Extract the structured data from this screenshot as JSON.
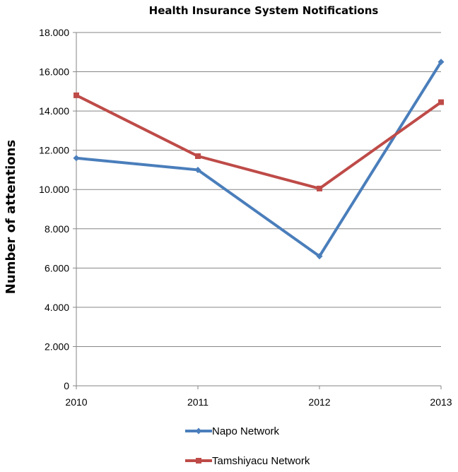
{
  "chart_data": {
    "type": "line",
    "title": "Health Insurance System Notifications",
    "ylabel": "Number of attentions",
    "xlabel": "",
    "x": [
      "2010",
      "2011",
      "2012",
      "2013"
    ],
    "ylim": [
      0,
      18000
    ],
    "ytick_values": [
      0,
      2000,
      4000,
      6000,
      8000,
      10000,
      12000,
      14000,
      16000,
      18000
    ],
    "ytick_labels": [
      "0",
      "2.000",
      "4.000",
      "6.000",
      "8.000",
      "10.000",
      "12.000",
      "14.000",
      "16.000",
      "18.000"
    ],
    "grid": true,
    "legend_position": "bottom",
    "series": [
      {
        "name": "Napo Network",
        "values": [
          11600,
          11000,
          6600,
          16500
        ],
        "color": "#4A7EBB",
        "marker": "diamond"
      },
      {
        "name": "Tamshiyacu Network",
        "values": [
          14800,
          11700,
          10050,
          14450
        ],
        "color": "#BE4B48",
        "marker": "square"
      }
    ]
  }
}
